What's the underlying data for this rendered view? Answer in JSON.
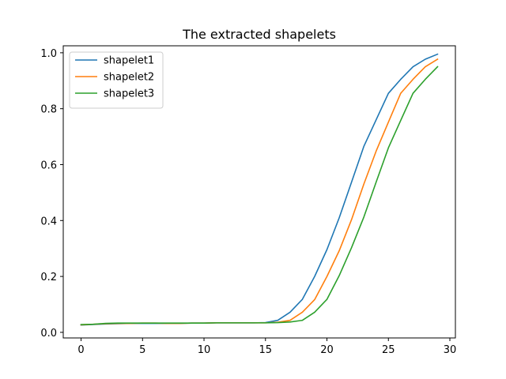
{
  "chart_data": {
    "type": "line",
    "title": "The extracted shapelets",
    "xlabel": "",
    "ylabel": "",
    "xlim": [
      -1.45,
      30.45
    ],
    "ylim": [
      -0.02,
      1.025
    ],
    "xticks": [
      0,
      5,
      10,
      15,
      20,
      25,
      30
    ],
    "yticks": [
      0.0,
      0.2,
      0.4,
      0.6,
      0.8,
      1.0
    ],
    "xtick_labels": [
      "0",
      "5",
      "10",
      "15",
      "20",
      "25",
      "30"
    ],
    "ytick_labels": [
      "0.0",
      "0.2",
      "0.4",
      "0.6",
      "0.8",
      "1.0"
    ],
    "grid": false,
    "legend_position": "top-left",
    "x": [
      0,
      1,
      2,
      3,
      4,
      5,
      6,
      7,
      8,
      9,
      10,
      11,
      12,
      13,
      14,
      15,
      16,
      17,
      18,
      19,
      20,
      21,
      22,
      23,
      24,
      25,
      26,
      27,
      28,
      29
    ],
    "series": [
      {
        "name": "shapelet1",
        "color": "#1f77b4",
        "values": [
          0.026,
          0.028,
          0.03,
          0.031,
          0.032,
          0.032,
          0.032,
          0.032,
          0.032,
          0.033,
          0.033,
          0.034,
          0.034,
          0.034,
          0.034,
          0.035,
          0.043,
          0.072,
          0.118,
          0.2,
          0.296,
          0.41,
          0.537,
          0.665,
          0.76,
          0.855,
          0.905,
          0.95,
          0.977,
          0.995
        ]
      },
      {
        "name": "shapelet2",
        "color": "#ff7f0e",
        "values": [
          0.027,
          0.029,
          0.031,
          0.032,
          0.032,
          0.033,
          0.033,
          0.032,
          0.032,
          0.033,
          0.033,
          0.034,
          0.034,
          0.034,
          0.034,
          0.034,
          0.036,
          0.043,
          0.072,
          0.117,
          0.2,
          0.292,
          0.403,
          0.53,
          0.648,
          0.752,
          0.855,
          0.905,
          0.95,
          0.977
        ]
      },
      {
        "name": "shapelet3",
        "color": "#2ca02c",
        "values": [
          0.028,
          0.029,
          0.032,
          0.033,
          0.033,
          0.033,
          0.033,
          0.033,
          0.033,
          0.033,
          0.033,
          0.034,
          0.034,
          0.034,
          0.034,
          0.034,
          0.035,
          0.037,
          0.043,
          0.072,
          0.118,
          0.203,
          0.303,
          0.412,
          0.537,
          0.66,
          0.758,
          0.855,
          0.905,
          0.95
        ]
      }
    ]
  }
}
